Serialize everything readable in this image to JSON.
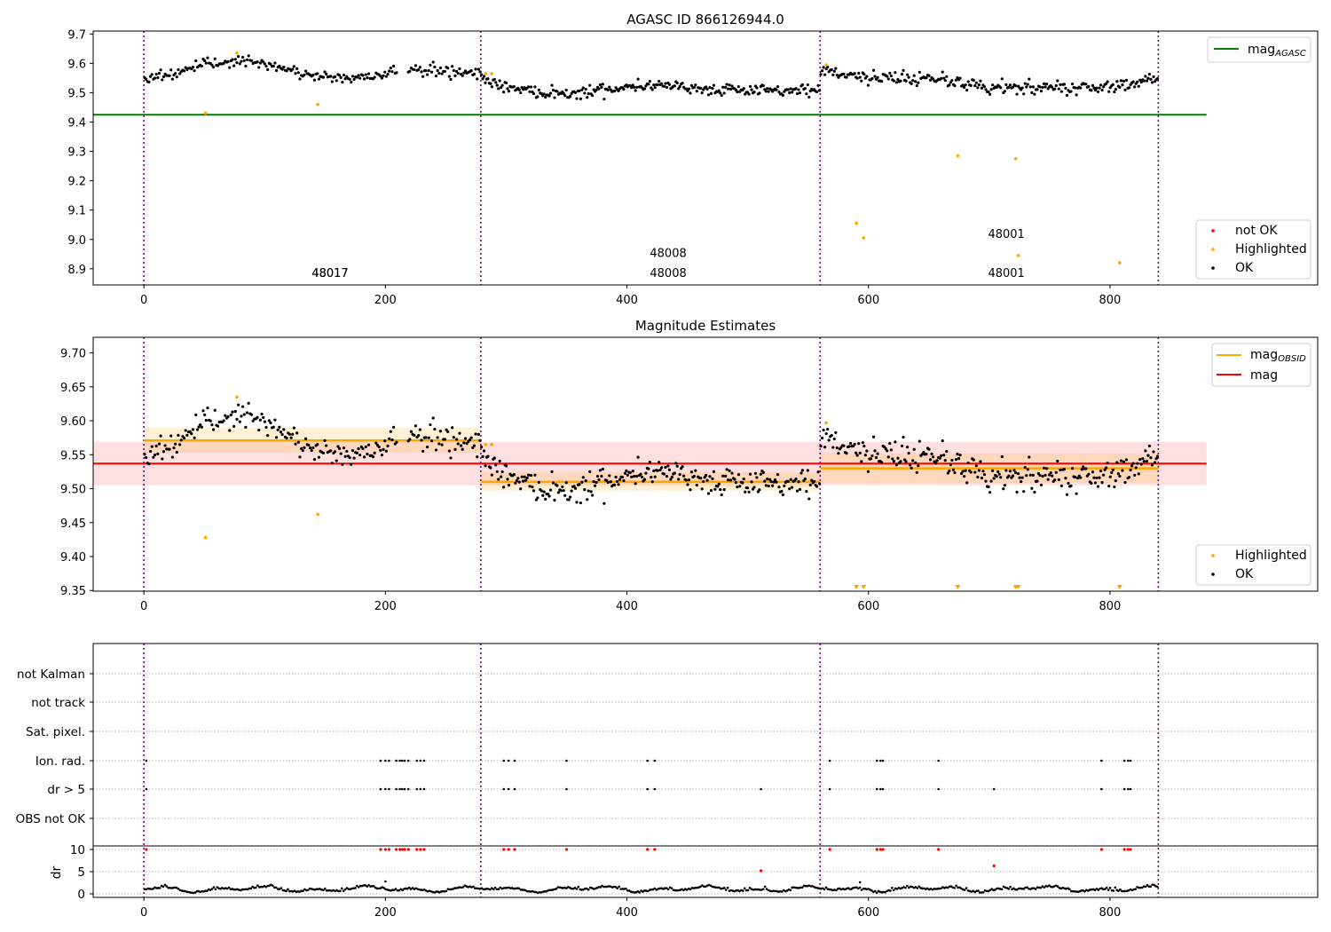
{
  "chart_data": [
    {
      "type": "scatter",
      "title": "AGASC ID 866126944.0",
      "xlim": [
        -42,
        972
      ],
      "ylim": [
        8.845,
        9.71
      ],
      "xticks": [
        0,
        200,
        400,
        600,
        800
      ],
      "yticks": [
        8.9,
        9.0,
        9.1,
        9.2,
        9.3,
        9.4,
        9.5,
        9.6,
        9.7
      ],
      "grid": false,
      "observation_boundaries": [
        0,
        279,
        560,
        840
      ],
      "observation_labels": [
        {
          "text": "48017",
          "x": 139,
          "y": 8.835
        },
        {
          "text": "48008",
          "x": 419,
          "y": 8.94
        },
        {
          "text": "48001",
          "x": 699,
          "y": 9.005
        }
      ],
      "series": [
        {
          "name": "not OK",
          "color": "#ff0000",
          "points": []
        },
        {
          "name": "Highlighted",
          "color": "#ffa500",
          "points": [
            [
              51,
              9.43
            ],
            [
              77,
              9.635
            ],
            [
              144,
              9.46
            ],
            [
              283,
              9.565
            ],
            [
              288,
              9.565
            ],
            [
              565,
              9.595
            ],
            [
              590,
              9.055
            ],
            [
              596,
              9.005
            ],
            [
              674,
              9.285
            ],
            [
              722,
              9.275
            ],
            [
              724,
              8.945
            ],
            [
              808,
              8.92
            ]
          ]
        },
        {
          "name": "OK",
          "color": "#000000",
          "segments": [
            {
              "x0": 0,
              "x1": 279,
              "n": 230,
              "profile": [
                [
                  0,
                  9.55
                ],
                [
                  30,
                  9.57
                ],
                [
                  50,
                  9.595
                ],
                [
                  75,
                  9.61
                ],
                [
                  100,
                  9.595
                ],
                [
                  120,
                  9.575
                ],
                [
                  140,
                  9.56
                ],
                [
                  160,
                  9.55
                ],
                [
                  185,
                  9.55
                ],
                [
                  210,
                  9.58
                ],
                [
                  235,
                  9.575
                ],
                [
                  279,
                  9.57
                ]
              ],
              "noise": 0.01,
              "gaps": [
                [
                  210,
                  218
                ]
              ]
            },
            {
              "x0": 279,
              "x1": 560,
              "n": 260,
              "profile": [
                [
                  279,
                  9.55
                ],
                [
                  300,
                  9.52
                ],
                [
                  330,
                  9.5
                ],
                [
                  360,
                  9.5
                ],
                [
                  400,
                  9.52
                ],
                [
                  430,
                  9.53
                ],
                [
                  470,
                  9.51
                ],
                [
                  520,
                  9.505
                ],
                [
                  560,
                  9.51
                ]
              ],
              "noise": 0.01,
              "gaps": []
            },
            {
              "x0": 560,
              "x1": 840,
              "n": 250,
              "profile": [
                [
                  560,
                  9.58
                ],
                [
                  600,
                  9.55
                ],
                [
                  640,
                  9.55
                ],
                [
                  660,
                  9.55
                ],
                [
                  690,
                  9.52
                ],
                [
                  740,
                  9.515
                ],
                [
                  790,
                  9.52
                ],
                [
                  815,
                  9.53
                ],
                [
                  840,
                  9.55
                ]
              ],
              "noise": 0.012,
              "gaps": []
            }
          ]
        }
      ],
      "lines": [
        {
          "name": "mag_AGASC",
          "y": 9.425,
          "x0": -42,
          "x1": 880,
          "color": "#008000"
        }
      ],
      "legend_lines": [
        {
          "text": "mag",
          "sub": "AGASC",
          "color": "#008000"
        }
      ],
      "legend_markers": [
        "not OK",
        "Highlighted",
        "OK"
      ],
      "legend_placement": [
        "top-right",
        "bottom-right"
      ]
    },
    {
      "type": "scatter",
      "title": "Magnitude Estimates",
      "xlim": [
        -42,
        972
      ],
      "ylim": [
        9.349,
        9.723
      ],
      "xticks": [
        0,
        200,
        400,
        600,
        800
      ],
      "yticks": [
        9.35,
        9.4,
        9.45,
        9.5,
        9.55,
        9.6,
        9.65,
        9.7
      ],
      "ytick_labels": [
        "9.35",
        "9.40",
        "9.45",
        "9.50",
        "9.55",
        "9.60",
        "9.65",
        "9.70"
      ],
      "grid": false,
      "observation_boundaries": [
        0,
        279,
        560,
        840
      ],
      "observation_labels": [
        {
          "text": "48017",
          "x": 139,
          "y": 9.36
        },
        {
          "text": "48008",
          "x": 419,
          "y": 9.388
        },
        {
          "text": "48001",
          "x": 699,
          "y": 9.418
        }
      ],
      "mag": {
        "value": 9.537,
        "band": [
          9.505,
          9.569
        ],
        "x0": -42,
        "x1": 880,
        "color": "#ff0000"
      },
      "mag_obsid": [
        {
          "x0": 0,
          "x1": 279,
          "value": 9.571,
          "band": [
            9.553,
            9.59
          ]
        },
        {
          "x0": 279,
          "x1": 560,
          "value": 9.51,
          "band": [
            9.497,
            9.524
          ]
        },
        {
          "x0": 560,
          "x1": 840,
          "value": 9.53,
          "band": [
            9.508,
            9.552
          ]
        }
      ],
      "highlighted_points": [
        [
          51,
          9.428
        ],
        [
          77,
          9.635
        ],
        [
          144,
          9.462
        ],
        [
          283,
          9.565
        ],
        [
          288,
          9.565
        ],
        [
          565,
          9.597
        ]
      ],
      "offscale_markers_x": [
        590,
        596,
        674,
        722,
        724,
        808
      ],
      "legend_lines": [
        {
          "text": "mag",
          "sub": "OBSID",
          "color": "#ffa500"
        },
        {
          "text": "mag",
          "sub": "",
          "color": "#ff0000"
        }
      ],
      "legend_markers": [
        "Highlighted",
        "OK"
      ],
      "legend_placement": [
        "top-right",
        "bottom-right"
      ]
    },
    {
      "type": "scatter",
      "xlim": [
        -42,
        972
      ],
      "xticks": [
        0,
        200,
        400,
        600,
        800
      ],
      "flag_labels": [
        "not Kalman",
        "not track",
        "Sat. pixel.",
        "Ion. rad.",
        "dr > 5",
        "OBS not OK"
      ],
      "flag_points": {
        "Ion. rad.": [
          2,
          196,
          200,
          203,
          209,
          212,
          214,
          216,
          219,
          226,
          229,
          232,
          298,
          302,
          307,
          350,
          417,
          423,
          568,
          607,
          610,
          612,
          658,
          793,
          812,
          815,
          817
        ],
        "dr > 5": [
          2,
          196,
          200,
          203,
          209,
          212,
          214,
          216,
          219,
          226,
          229,
          232,
          298,
          302,
          307,
          350,
          417,
          423,
          511,
          568,
          607,
          610,
          612,
          658,
          704,
          793,
          812,
          815,
          817
        ]
      },
      "dr_axis": {
        "ylabel": "dr",
        "yticks": [
          0,
          5,
          10
        ],
        "ylim": [
          -0.8,
          10.8
        ]
      },
      "dr_flagged": [
        [
          2,
          10
        ],
        [
          196,
          10
        ],
        [
          200,
          10
        ],
        [
          203,
          10
        ],
        [
          209,
          10
        ],
        [
          212,
          10
        ],
        [
          214,
          10
        ],
        [
          216,
          10
        ],
        [
          219,
          10
        ],
        [
          226,
          10
        ],
        [
          229,
          10
        ],
        [
          232,
          10
        ],
        [
          298,
          10
        ],
        [
          302,
          10
        ],
        [
          307,
          10
        ],
        [
          350,
          10
        ],
        [
          417,
          10
        ],
        [
          423,
          10
        ],
        [
          511,
          5.2
        ],
        [
          568,
          10
        ],
        [
          607,
          10
        ],
        [
          610,
          10
        ],
        [
          612,
          10
        ],
        [
          658,
          10
        ],
        [
          704,
          6.3
        ],
        [
          793,
          10
        ],
        [
          812,
          10
        ],
        [
          815,
          10
        ],
        [
          817,
          10
        ]
      ],
      "dr_extra": [
        [
          200,
          2.8
        ],
        [
          593,
          2.6
        ]
      ],
      "dr_segments": [
        [
          0,
          279
        ],
        [
          279,
          560
        ],
        [
          560,
          840
        ]
      ]
    }
  ]
}
